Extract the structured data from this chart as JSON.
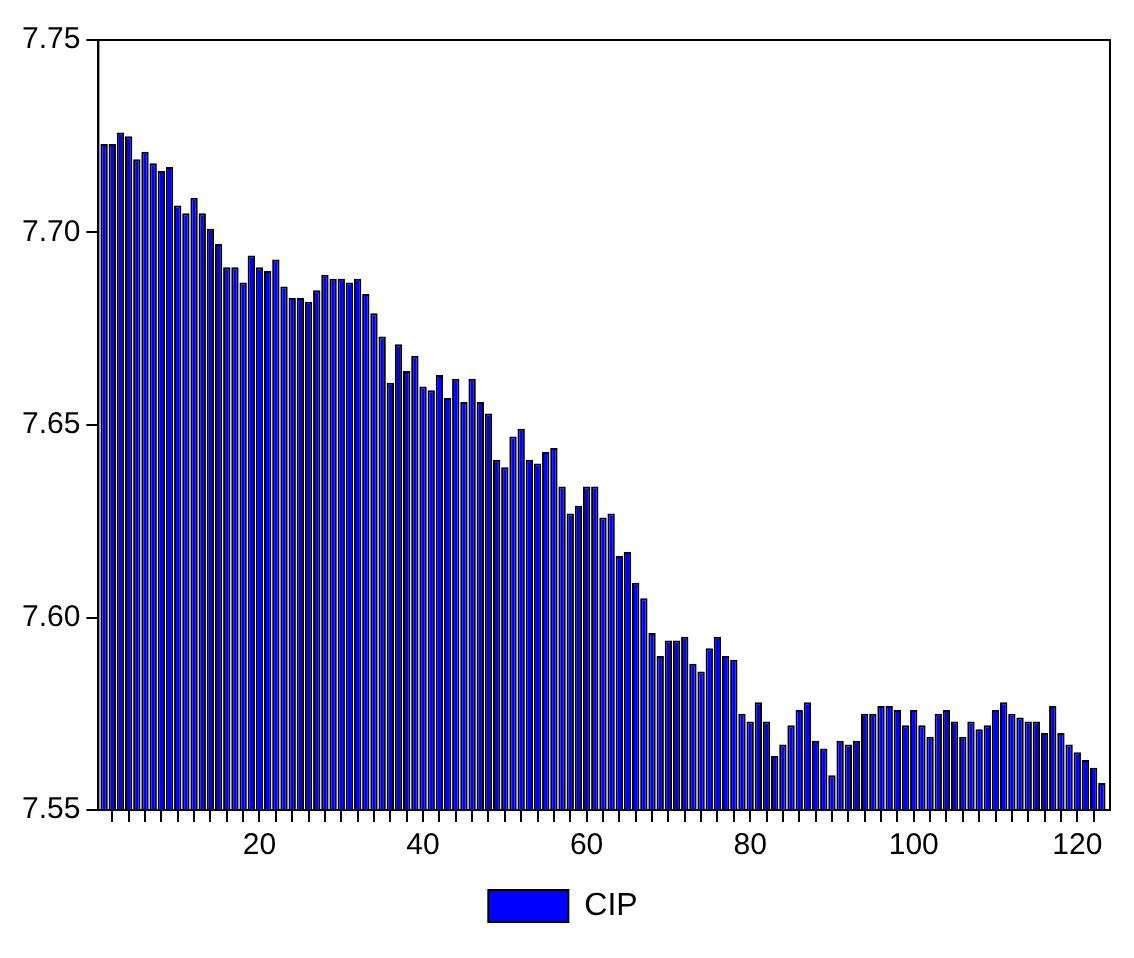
{
  "chart_data": {
    "type": "bar",
    "x": [
      1,
      2,
      3,
      4,
      5,
      6,
      7,
      8,
      9,
      10,
      11,
      12,
      13,
      14,
      15,
      16,
      17,
      18,
      19,
      20,
      21,
      22,
      23,
      24,
      25,
      26,
      27,
      28,
      29,
      30,
      31,
      32,
      33,
      34,
      35,
      36,
      37,
      38,
      39,
      40,
      41,
      42,
      43,
      44,
      45,
      46,
      47,
      48,
      49,
      50,
      51,
      52,
      53,
      54,
      55,
      56,
      57,
      58,
      59,
      60,
      61,
      62,
      63,
      64,
      65,
      66,
      67,
      68,
      69,
      70,
      71,
      72,
      73,
      74,
      75,
      76,
      77,
      78,
      79,
      80,
      81,
      82,
      83,
      84,
      85,
      86,
      87,
      88,
      89,
      90,
      91,
      92,
      93,
      94,
      95,
      96,
      97,
      98,
      99,
      100,
      101,
      102,
      103,
      104,
      105,
      106,
      107,
      108,
      109,
      110,
      111,
      112,
      113,
      114,
      115,
      116,
      117,
      118,
      119,
      120,
      121,
      122,
      123
    ],
    "series": [
      {
        "name": "CIP",
        "color": "#0000ff",
        "values": [
          7.723,
          7.723,
          7.726,
          7.725,
          7.719,
          7.721,
          7.718,
          7.716,
          7.717,
          7.707,
          7.705,
          7.709,
          7.705,
          7.701,
          7.697,
          7.691,
          7.691,
          7.687,
          7.694,
          7.691,
          7.69,
          7.693,
          7.686,
          7.683,
          7.683,
          7.682,
          7.685,
          7.689,
          7.688,
          7.688,
          7.687,
          7.688,
          7.684,
          7.679,
          7.673,
          7.661,
          7.671,
          7.664,
          7.668,
          7.66,
          7.659,
          7.663,
          7.657,
          7.662,
          7.656,
          7.662,
          7.656,
          7.653,
          7.641,
          7.639,
          7.647,
          7.649,
          7.641,
          7.64,
          7.643,
          7.644,
          7.634,
          7.627,
          7.629,
          7.634,
          7.634,
          7.626,
          7.627,
          7.616,
          7.617,
          7.609,
          7.605,
          7.596,
          7.59,
          7.594,
          7.594,
          7.595,
          7.588,
          7.586,
          7.592,
          7.595,
          7.59,
          7.589,
          7.575,
          7.573,
          7.578,
          7.573,
          7.564,
          7.567,
          7.572,
          7.576,
          7.578,
          7.568,
          7.566,
          7.559,
          7.568,
          7.567,
          7.568,
          7.575,
          7.575,
          7.577,
          7.577,
          7.576,
          7.572,
          7.576,
          7.572,
          7.569,
          7.575,
          7.576,
          7.573,
          7.569,
          7.573,
          7.571,
          7.572,
          7.576,
          7.578,
          7.575,
          7.574,
          7.573,
          7.573,
          7.57,
          7.577,
          7.57,
          7.567,
          7.565,
          7.563,
          7.561,
          7.557
        ]
      }
    ],
    "xlim": [
      0.3,
      124
    ],
    "xticks": [
      {
        "value": 2,
        "label": null
      },
      {
        "value": 4,
        "label": null
      },
      {
        "value": 6,
        "label": null
      },
      {
        "value": 8,
        "label": null
      },
      {
        "value": 10,
        "label": null
      },
      {
        "value": 12,
        "label": null
      },
      {
        "value": 14,
        "label": null
      },
      {
        "value": 16,
        "label": null
      },
      {
        "value": 18,
        "label": null
      },
      20,
      {
        "value": 22,
        "label": null
      },
      {
        "value": 24,
        "label": null
      },
      {
        "value": 26,
        "label": null
      },
      {
        "value": 28,
        "label": null
      },
      {
        "value": 30,
        "label": null
      },
      {
        "value": 32,
        "label": null
      },
      {
        "value": 34,
        "label": null
      },
      {
        "value": 36,
        "label": null
      },
      {
        "value": 38,
        "label": null
      },
      40,
      {
        "value": 42,
        "label": null
      },
      {
        "value": 44,
        "label": null
      },
      {
        "value": 46,
        "label": null
      },
      {
        "value": 48,
        "label": null
      },
      {
        "value": 50,
        "label": null
      },
      {
        "value": 52,
        "label": null
      },
      {
        "value": 54,
        "label": null
      },
      {
        "value": 56,
        "label": null
      },
      {
        "value": 58,
        "label": null
      },
      60,
      {
        "value": 62,
        "label": null
      },
      {
        "value": 64,
        "label": null
      },
      {
        "value": 66,
        "label": null
      },
      {
        "value": 68,
        "label": null
      },
      {
        "value": 70,
        "label": null
      },
      {
        "value": 72,
        "label": null
      },
      {
        "value": 74,
        "label": null
      },
      {
        "value": 76,
        "label": null
      },
      {
        "value": 78,
        "label": null
      },
      80,
      {
        "value": 82,
        "label": null
      },
      {
        "value": 84,
        "label": null
      },
      {
        "value": 86,
        "label": null
      },
      {
        "value": 88,
        "label": null
      },
      {
        "value": 90,
        "label": null
      },
      {
        "value": 92,
        "label": null
      },
      {
        "value": 94,
        "label": null
      },
      {
        "value": 96,
        "label": null
      },
      {
        "value": 98,
        "label": null
      },
      100,
      {
        "value": 102,
        "label": null
      },
      {
        "value": 104,
        "label": null
      },
      {
        "value": 106,
        "label": null
      },
      {
        "value": 108,
        "label": null
      },
      {
        "value": 110,
        "label": null
      },
      {
        "value": 112,
        "label": null
      },
      {
        "value": 114,
        "label": null
      },
      {
        "value": 116,
        "label": null
      },
      {
        "value": 118,
        "label": null
      },
      120,
      {
        "value": 122,
        "label": null
      }
    ],
    "ylim": [
      7.55,
      7.75
    ],
    "yticks": [
      {
        "value": 7.55,
        "label": "7.55"
      },
      {
        "value": 7.6,
        "label": "7.60"
      },
      {
        "value": 7.65,
        "label": "7.65"
      },
      {
        "value": 7.7,
        "label": "7.70"
      },
      {
        "value": 7.75,
        "label": "7.75"
      }
    ],
    "grid": false,
    "legend": "bottom"
  }
}
